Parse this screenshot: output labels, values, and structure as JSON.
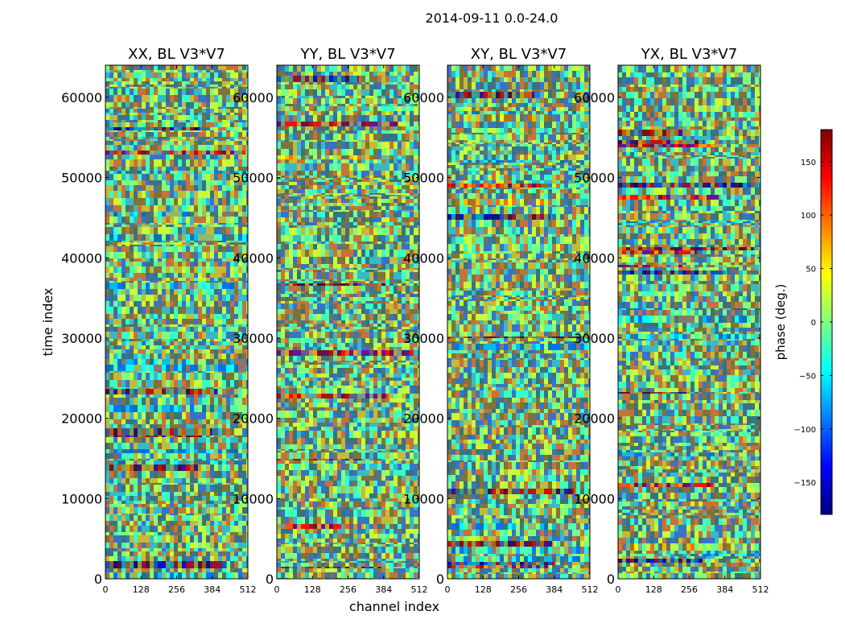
{
  "figure": {
    "suptitle": "2014-09-11 0.0-24.0",
    "shared_ylabel": "time index",
    "shared_xlabel": "channel index"
  },
  "chart_data": [
    {
      "type": "heatmap",
      "title": "XX, BL V3*V7",
      "xlabel": "channel index",
      "ylabel": "time index",
      "xlim": [
        0,
        512
      ],
      "ylim": [
        0,
        64000
      ],
      "xticks": [
        0,
        128,
        256,
        384,
        512
      ],
      "yticks": [
        0,
        10000,
        20000,
        30000,
        40000,
        50000,
        60000
      ],
      "value_unit": "phase (deg.)"
    },
    {
      "type": "heatmap",
      "title": "YY, BL V3*V7",
      "xlabel": "",
      "ylabel": "",
      "xlim": [
        0,
        512
      ],
      "ylim": [
        0,
        64000
      ],
      "xticks": [
        0,
        128,
        256,
        384,
        512
      ],
      "yticks": [
        0,
        10000,
        20000,
        30000,
        40000,
        50000,
        60000
      ],
      "value_unit": "phase (deg.)"
    },
    {
      "type": "heatmap",
      "title": "XY, BL V3*V7",
      "xlabel": "",
      "ylabel": "",
      "xlim": [
        0,
        512
      ],
      "ylim": [
        0,
        64000
      ],
      "xticks": [
        0,
        128,
        256,
        384,
        512
      ],
      "yticks": [
        0,
        10000,
        20000,
        30000,
        40000,
        50000,
        60000
      ],
      "value_unit": "phase (deg.)"
    },
    {
      "type": "heatmap",
      "title": "YX, BL V3*V7",
      "xlabel": "",
      "ylabel": "",
      "xlim": [
        0,
        512
      ],
      "ylim": [
        0,
        64000
      ],
      "xticks": [
        0,
        128,
        256,
        384,
        512
      ],
      "yticks": [
        0,
        10000,
        20000,
        30000,
        40000,
        50000,
        60000
      ],
      "value_unit": "phase (deg.)"
    }
  ],
  "colorbar": {
    "label": "phase (deg.)",
    "range": [
      -180,
      180
    ],
    "ticks": [
      -150,
      -100,
      -50,
      0,
      50,
      100,
      150
    ],
    "tick_labels": [
      "−150",
      "−100",
      "−50",
      "0",
      "50",
      "100",
      "150"
    ],
    "colormap": "jet",
    "colors": [
      "#00007f",
      "#0000ff",
      "#007fff",
      "#00ffff",
      "#7fff7f",
      "#ffff00",
      "#ff7f00",
      "#ff0000",
      "#7f0000"
    ]
  }
}
